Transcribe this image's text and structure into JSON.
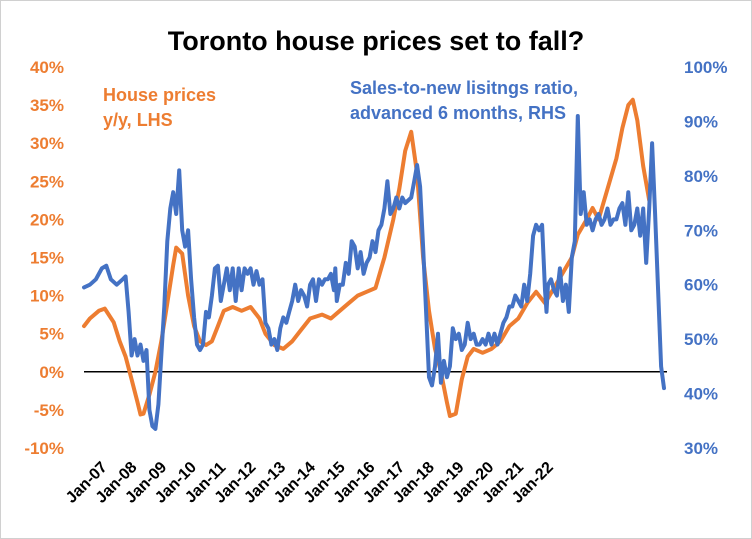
{
  "chart_data": {
    "type": "line",
    "title": "Toronto house prices set to fall?",
    "x_ticks": [
      "Jan-07",
      "Jan-08",
      "Jan-09",
      "Jan-10",
      "Jan-11",
      "Jan-12",
      "Jan-13",
      "Jan-14",
      "Jan-15",
      "Jan-16",
      "Jan-17",
      "Jan-18",
      "Jan-19",
      "Jan-20",
      "Jan-21",
      "Jan-22"
    ],
    "y_left_ticks": [
      "40%",
      "35%",
      "30%",
      "25%",
      "20%",
      "15%",
      "10%",
      "5%",
      "0%",
      "-5%",
      "-10%"
    ],
    "y_right_ticks": [
      "100%",
      "90%",
      "80%",
      "70%",
      "60%",
      "50%",
      "40%",
      "30%"
    ],
    "ylim_left": [
      -10,
      40
    ],
    "ylim_right": [
      30,
      100
    ],
    "zero_line": 0,
    "grid": false,
    "colors": {
      "house": "#ED7D31",
      "sales": "#4472C4",
      "zero": "#000000"
    },
    "annotations": [
      {
        "lines": [
          "House prices",
          "y/y, LHS"
        ],
        "color": "#ED7D31"
      },
      {
        "lines": [
          "Sales-to-new lisitngs ratio,",
          "advanced 6 months, RHS"
        ],
        "color": "#4472C4"
      }
    ],
    "series": [
      {
        "axis": "left",
        "color": "#ED7D31",
        "points": [
          [
            2007.0,
            6
          ],
          [
            2007.2,
            7
          ],
          [
            2007.5,
            8
          ],
          [
            2007.7,
            8.3
          ],
          [
            2008.0,
            6.5
          ],
          [
            2008.2,
            4
          ],
          [
            2008.4,
            2
          ],
          [
            2008.6,
            -1
          ],
          [
            2008.8,
            -4
          ],
          [
            2008.9,
            -5.6
          ],
          [
            2009.0,
            -5.5
          ],
          [
            2009.2,
            -3
          ],
          [
            2009.4,
            0
          ],
          [
            2009.6,
            4
          ],
          [
            2009.8,
            9
          ],
          [
            2010.0,
            14
          ],
          [
            2010.1,
            16.3
          ],
          [
            2010.3,
            15.5
          ],
          [
            2010.5,
            10
          ],
          [
            2010.7,
            6
          ],
          [
            2010.9,
            4
          ],
          [
            2011.1,
            3.5
          ],
          [
            2011.3,
            4
          ],
          [
            2011.5,
            6
          ],
          [
            2011.7,
            8
          ],
          [
            2012.0,
            8.5
          ],
          [
            2012.3,
            8
          ],
          [
            2012.6,
            8.5
          ],
          [
            2012.9,
            7
          ],
          [
            2013.1,
            5
          ],
          [
            2013.4,
            3.5
          ],
          [
            2013.7,
            3
          ],
          [
            2014.0,
            4
          ],
          [
            2014.3,
            5.5
          ],
          [
            2014.6,
            7
          ],
          [
            2015.0,
            7.5
          ],
          [
            2015.3,
            7
          ],
          [
            2015.6,
            8
          ],
          [
            2015.9,
            9
          ],
          [
            2016.2,
            10
          ],
          [
            2016.5,
            10.5
          ],
          [
            2016.8,
            11
          ],
          [
            2017.1,
            15
          ],
          [
            2017.4,
            20
          ],
          [
            2017.6,
            24
          ],
          [
            2017.8,
            29
          ],
          [
            2018.0,
            31.5
          ],
          [
            2018.2,
            26
          ],
          [
            2018.4,
            15
          ],
          [
            2018.6,
            8
          ],
          [
            2018.8,
            3
          ],
          [
            2019.0,
            0
          ],
          [
            2019.2,
            -4
          ],
          [
            2019.3,
            -5.8
          ],
          [
            2019.5,
            -5.5
          ],
          [
            2019.7,
            -1
          ],
          [
            2019.9,
            2
          ],
          [
            2020.1,
            3
          ],
          [
            2020.4,
            2.5
          ],
          [
            2020.7,
            3
          ],
          [
            2021.0,
            4
          ],
          [
            2021.3,
            6
          ],
          [
            2021.6,
            7
          ],
          [
            2021.9,
            9
          ],
          [
            2022.2,
            10.5
          ],
          [
            2022.5,
            9
          ],
          [
            2022.8,
            11
          ],
          [
            2023.1,
            13
          ],
          [
            2023.4,
            15
          ],
          [
            2023.6,
            18
          ],
          [
            2023.9,
            20
          ],
          [
            2024.1,
            21.5
          ],
          [
            2024.3,
            20
          ],
          [
            2024.6,
            24
          ],
          [
            2024.9,
            28
          ],
          [
            2025.1,
            32
          ],
          [
            2025.3,
            35
          ],
          [
            2025.45,
            35.7
          ],
          [
            2025.6,
            33
          ],
          [
            2025.8,
            27
          ],
          [
            2026.0,
            22.5
          ]
        ]
      },
      {
        "axis": "right",
        "color": "#4472C4",
        "points": [
          [
            2007.0,
            59.5
          ],
          [
            2007.2,
            60
          ],
          [
            2007.4,
            61
          ],
          [
            2007.6,
            63
          ],
          [
            2007.75,
            63.5
          ],
          [
            2007.9,
            61
          ],
          [
            2008.1,
            60
          ],
          [
            2008.3,
            61
          ],
          [
            2008.4,
            61.5
          ],
          [
            2008.5,
            55
          ],
          [
            2008.6,
            47
          ],
          [
            2008.7,
            50
          ],
          [
            2008.8,
            47
          ],
          [
            2008.9,
            49
          ],
          [
            2009.0,
            46
          ],
          [
            2009.1,
            48
          ],
          [
            2009.2,
            37
          ],
          [
            2009.3,
            34
          ],
          [
            2009.4,
            33.5
          ],
          [
            2009.5,
            38
          ],
          [
            2009.6,
            47
          ],
          [
            2009.7,
            56
          ],
          [
            2009.8,
            68
          ],
          [
            2009.9,
            74
          ],
          [
            2010.0,
            77
          ],
          [
            2010.1,
            73
          ],
          [
            2010.2,
            81
          ],
          [
            2010.3,
            70
          ],
          [
            2010.4,
            67
          ],
          [
            2010.5,
            70
          ],
          [
            2010.6,
            61
          ],
          [
            2010.7,
            54
          ],
          [
            2010.8,
            49
          ],
          [
            2010.9,
            48
          ],
          [
            2011.0,
            49
          ],
          [
            2011.1,
            55
          ],
          [
            2011.2,
            54
          ],
          [
            2011.3,
            58
          ],
          [
            2011.4,
            63
          ],
          [
            2011.5,
            63.5
          ],
          [
            2011.6,
            57
          ],
          [
            2011.7,
            60
          ],
          [
            2011.8,
            63
          ],
          [
            2011.9,
            59
          ],
          [
            2012.0,
            63
          ],
          [
            2012.1,
            57
          ],
          [
            2012.2,
            63
          ],
          [
            2012.3,
            59
          ],
          [
            2012.4,
            63
          ],
          [
            2012.5,
            62
          ],
          [
            2012.6,
            63
          ],
          [
            2012.7,
            60
          ],
          [
            2012.8,
            62.5
          ],
          [
            2012.9,
            60
          ],
          [
            2013.0,
            61
          ],
          [
            2013.1,
            53
          ],
          [
            2013.2,
            52
          ],
          [
            2013.3,
            49
          ],
          [
            2013.4,
            50
          ],
          [
            2013.5,
            48
          ],
          [
            2013.6,
            52
          ],
          [
            2013.7,
            54
          ],
          [
            2013.8,
            53
          ],
          [
            2013.9,
            55
          ],
          [
            2014.0,
            57
          ],
          [
            2014.1,
            60
          ],
          [
            2014.2,
            57
          ],
          [
            2014.3,
            59
          ],
          [
            2014.4,
            58
          ],
          [
            2014.5,
            56
          ],
          [
            2014.6,
            60
          ],
          [
            2014.7,
            61
          ],
          [
            2014.8,
            57
          ],
          [
            2014.9,
            61
          ],
          [
            2015.0,
            60
          ],
          [
            2015.1,
            61
          ],
          [
            2015.2,
            61
          ],
          [
            2015.3,
            62
          ],
          [
            2015.4,
            59
          ],
          [
            2015.45,
            63
          ],
          [
            2015.5,
            57
          ],
          [
            2015.6,
            60
          ],
          [
            2015.7,
            60
          ],
          [
            2015.8,
            64
          ],
          [
            2015.9,
            62
          ],
          [
            2016.0,
            68
          ],
          [
            2016.1,
            67
          ],
          [
            2016.2,
            63
          ],
          [
            2016.3,
            66
          ],
          [
            2016.4,
            62
          ],
          [
            2016.5,
            64
          ],
          [
            2016.6,
            65
          ],
          [
            2016.7,
            68
          ],
          [
            2016.8,
            66
          ],
          [
            2016.9,
            70
          ],
          [
            2017.0,
            71
          ],
          [
            2017.1,
            74
          ],
          [
            2017.2,
            79
          ],
          [
            2017.3,
            73
          ],
          [
            2017.4,
            74
          ],
          [
            2017.5,
            76
          ],
          [
            2017.6,
            74
          ],
          [
            2017.7,
            76
          ],
          [
            2017.8,
            75
          ],
          [
            2018.0,
            76
          ],
          [
            2018.1,
            79
          ],
          [
            2018.2,
            82
          ],
          [
            2018.3,
            78
          ],
          [
            2018.4,
            67
          ],
          [
            2018.5,
            55
          ],
          [
            2018.6,
            43
          ],
          [
            2018.7,
            41.5
          ],
          [
            2018.8,
            45
          ],
          [
            2018.9,
            51
          ],
          [
            2019.0,
            42
          ],
          [
            2019.1,
            46
          ],
          [
            2019.2,
            43
          ],
          [
            2019.3,
            45
          ],
          [
            2019.4,
            52
          ],
          [
            2019.5,
            50
          ],
          [
            2019.6,
            51
          ],
          [
            2019.7,
            48
          ],
          [
            2019.8,
            49
          ],
          [
            2019.9,
            53
          ],
          [
            2020.0,
            50
          ],
          [
            2020.1,
            51
          ],
          [
            2020.2,
            49
          ],
          [
            2020.3,
            49
          ],
          [
            2020.4,
            50
          ],
          [
            2020.5,
            49
          ],
          [
            2020.6,
            51
          ],
          [
            2020.7,
            49
          ],
          [
            2020.8,
            51
          ],
          [
            2020.9,
            49
          ],
          [
            2021.0,
            51
          ],
          [
            2021.1,
            53
          ],
          [
            2021.2,
            54
          ],
          [
            2021.3,
            56
          ],
          [
            2021.4,
            56
          ],
          [
            2021.5,
            58
          ],
          [
            2021.6,
            57
          ],
          [
            2021.7,
            56
          ],
          [
            2021.8,
            60
          ],
          [
            2021.9,
            57
          ],
          [
            2022.0,
            62
          ],
          [
            2022.1,
            69
          ],
          [
            2022.2,
            71
          ],
          [
            2022.3,
            70
          ],
          [
            2022.4,
            71
          ],
          [
            2022.5,
            59
          ],
          [
            2022.55,
            55
          ],
          [
            2022.6,
            60
          ],
          [
            2022.7,
            61
          ],
          [
            2022.8,
            59
          ],
          [
            2022.9,
            58
          ],
          [
            2023.0,
            63
          ],
          [
            2023.1,
            57
          ],
          [
            2023.2,
            60
          ],
          [
            2023.3,
            55
          ],
          [
            2023.4,
            65
          ],
          [
            2023.5,
            68
          ],
          [
            2023.6,
            91
          ],
          [
            2023.7,
            73
          ],
          [
            2023.8,
            77
          ],
          [
            2023.9,
            71
          ],
          [
            2024.0,
            72
          ],
          [
            2024.1,
            70
          ],
          [
            2024.2,
            72
          ],
          [
            2024.3,
            73
          ],
          [
            2024.4,
            71
          ],
          [
            2024.5,
            72
          ],
          [
            2024.6,
            74
          ],
          [
            2024.7,
            71
          ],
          [
            2024.8,
            72
          ],
          [
            2024.9,
            72
          ],
          [
            2025.0,
            74
          ],
          [
            2025.1,
            75
          ],
          [
            2025.2,
            71
          ],
          [
            2025.3,
            77
          ],
          [
            2025.4,
            70
          ],
          [
            2025.5,
            71
          ],
          [
            2025.6,
            74
          ],
          [
            2025.7,
            69
          ],
          [
            2025.8,
            74
          ],
          [
            2025.9,
            64
          ],
          [
            2026.0,
            74
          ],
          [
            2026.1,
            86
          ],
          [
            2026.2,
            73
          ],
          [
            2026.3,
            59
          ],
          [
            2026.4,
            45
          ],
          [
            2026.5,
            41
          ]
        ]
      }
    ]
  }
}
